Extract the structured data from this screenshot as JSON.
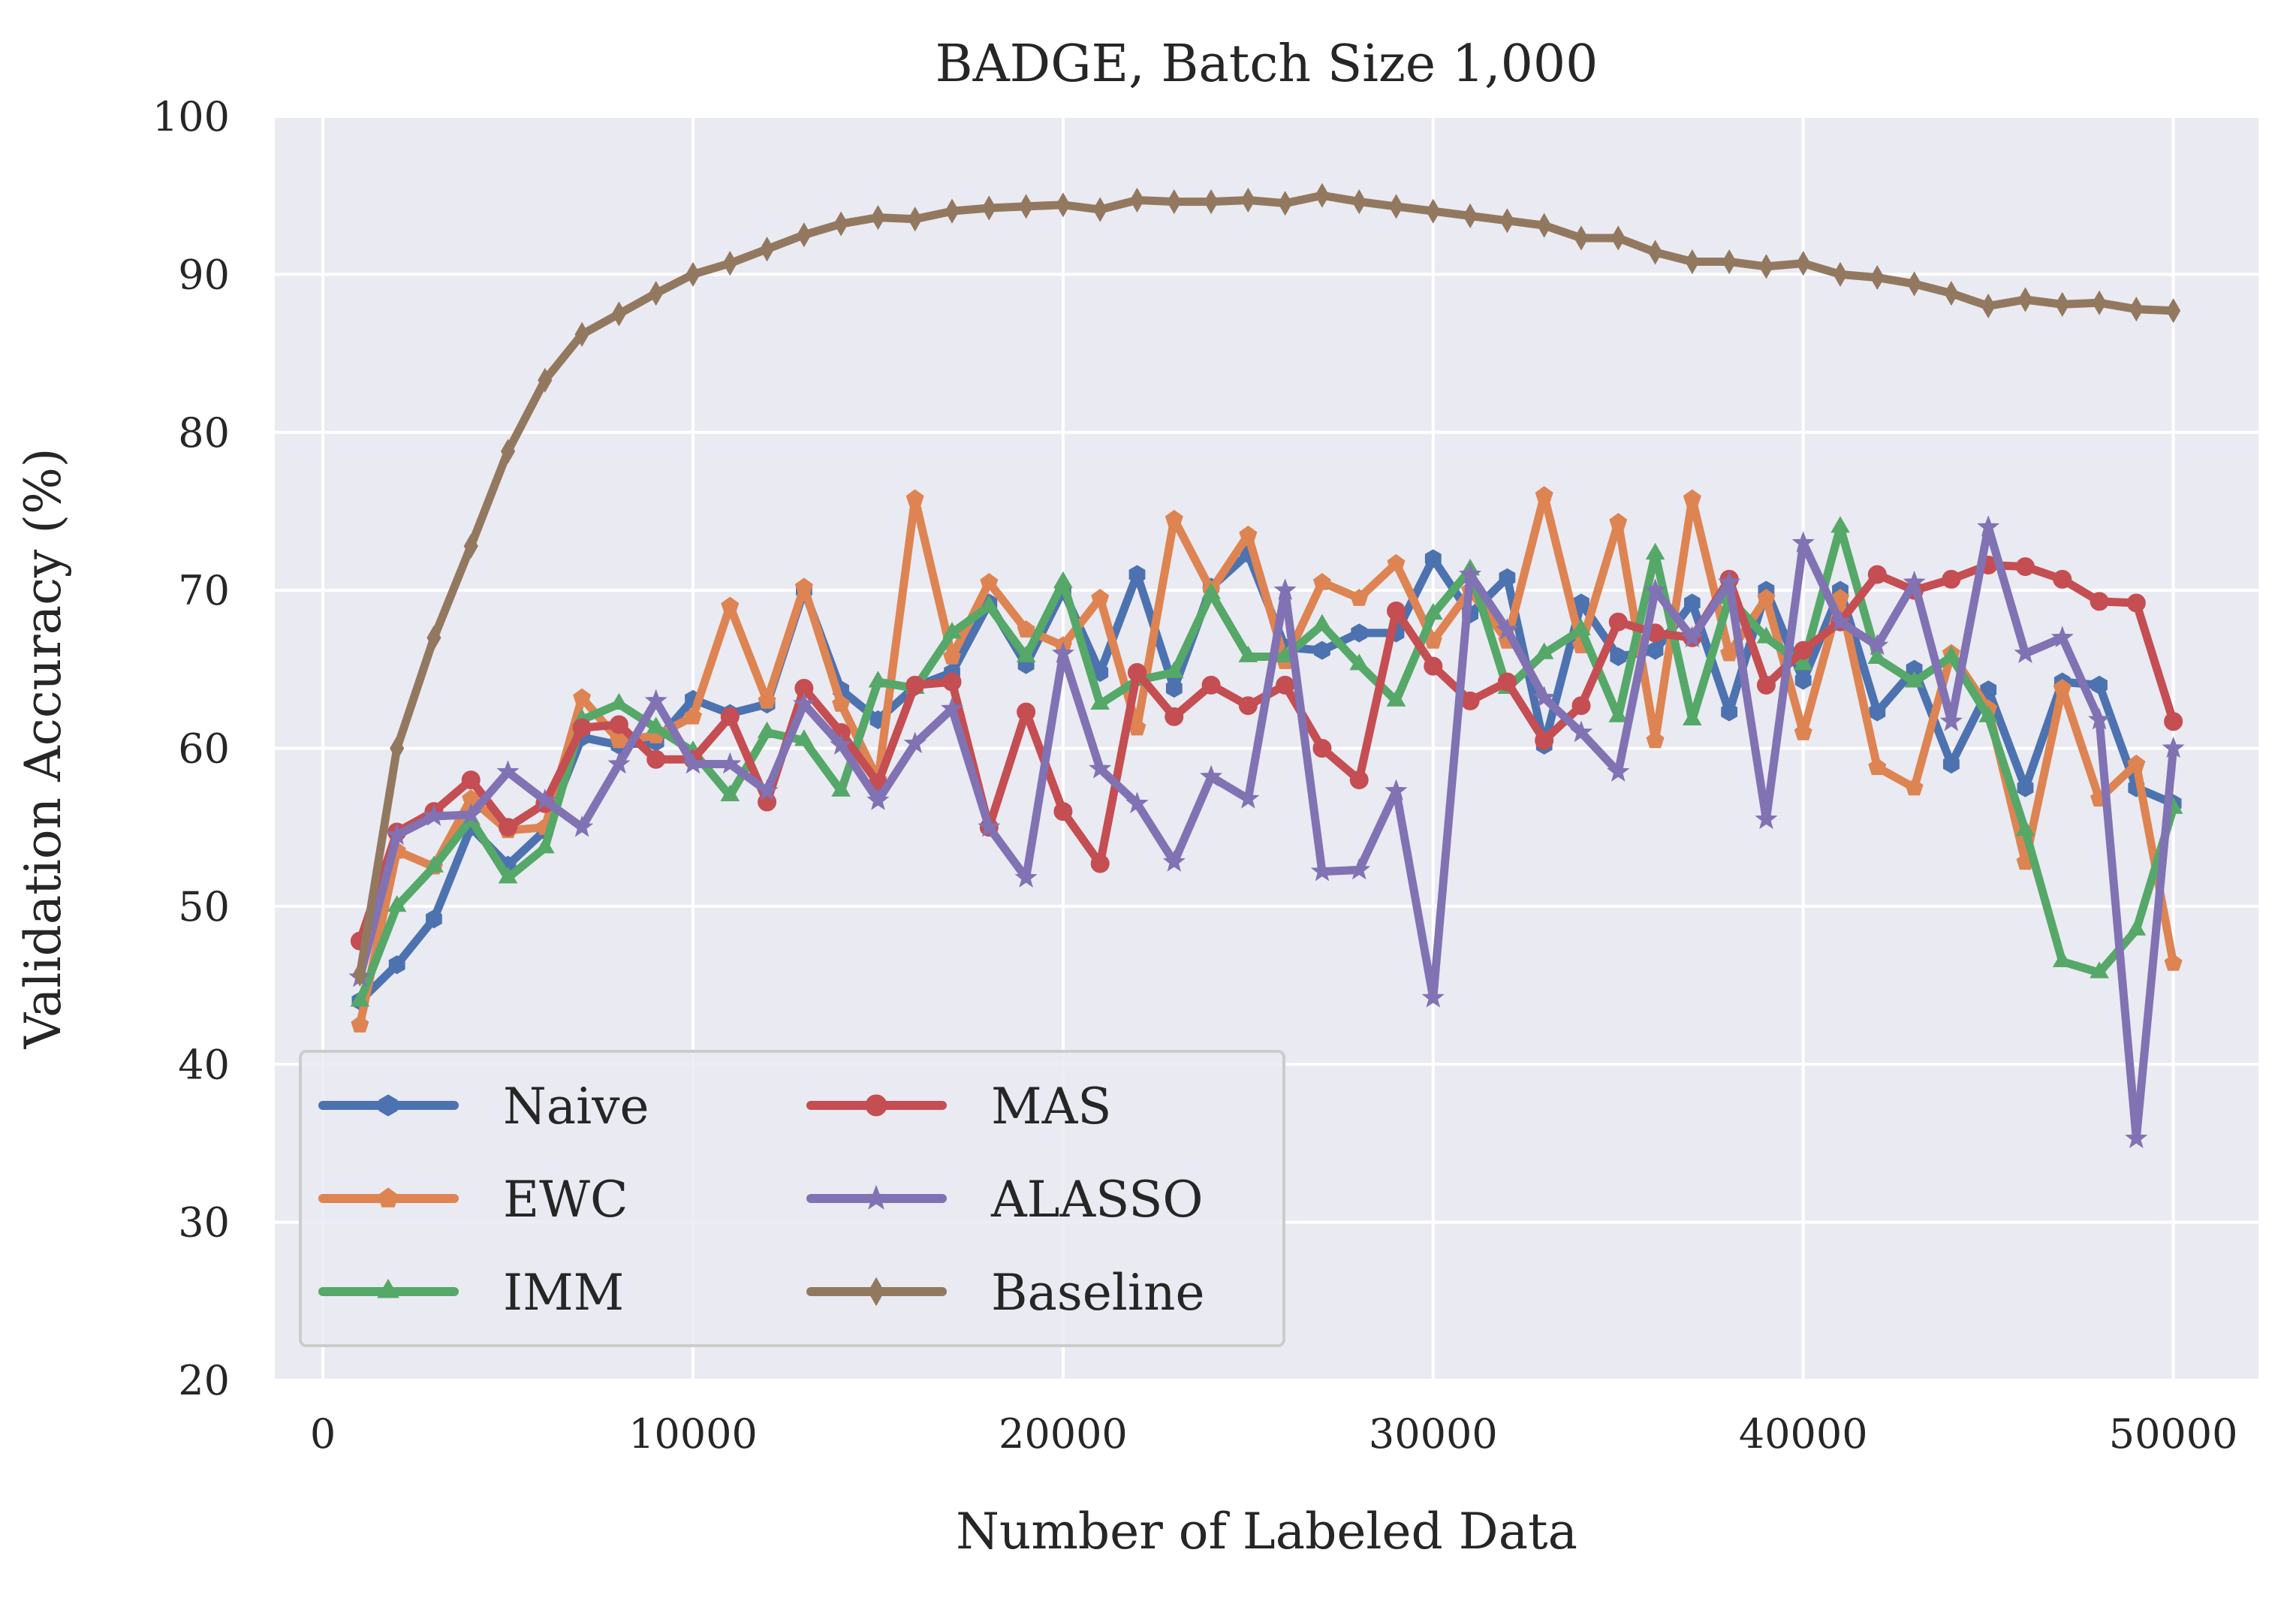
{
  "chart_data": {
    "type": "line",
    "title": "BADGE, Batch Size 1,000",
    "xlabel": "Number of Labeled Data",
    "ylabel": "Validation Accuracy (%)",
    "xlim": [
      -1300,
      52300
    ],
    "ylim": [
      20,
      100
    ],
    "xticks": [
      0,
      10000,
      20000,
      30000,
      40000,
      50000
    ],
    "yticks": [
      20,
      30,
      40,
      50,
      60,
      70,
      80,
      90,
      100
    ],
    "grid": true,
    "legend": {
      "placement": "lower-left",
      "columns": 2
    },
    "x": [
      1000,
      2000,
      3000,
      4000,
      5000,
      6000,
      7000,
      8000,
      9000,
      10000,
      11000,
      12000,
      13000,
      14000,
      15000,
      16000,
      17000,
      18000,
      19000,
      20000,
      21000,
      22000,
      23000,
      24000,
      25000,
      26000,
      27000,
      28000,
      29000,
      30000,
      31000,
      32000,
      33000,
      34000,
      35000,
      36000,
      37000,
      38000,
      39000,
      40000,
      41000,
      42000,
      43000,
      44000,
      45000,
      46000,
      47000,
      48000,
      49000,
      50000
    ],
    "series": [
      {
        "name": "Naive",
        "color": "#4c72b0",
        "marker": "hexagon",
        "values": [
          44,
          46.3,
          49.2,
          55,
          52.6,
          54.8,
          60.7,
          60.2,
          60.4,
          63.1,
          62.2,
          62.8,
          70,
          63.7,
          61.8,
          63.9,
          64.8,
          69.2,
          65.3,
          70,
          64.8,
          71,
          63.8,
          70.2,
          72.3,
          66.4,
          66.2,
          67.3,
          67.3,
          72,
          68.5,
          70.8,
          60.2,
          69.2,
          65.8,
          66.2,
          69.2,
          62.3,
          70,
          64.3,
          70,
          62.3,
          65,
          59,
          63.7,
          57.5,
          64.2,
          64,
          57.5,
          56.5
        ]
      },
      {
        "name": "EWC",
        "color": "#dd8452",
        "marker": "pentagon",
        "values": [
          42.5,
          53.5,
          52.5,
          56.8,
          54.8,
          55,
          63.2,
          60.5,
          60.8,
          62,
          69,
          63,
          70.2,
          62.8,
          58,
          75.8,
          65.8,
          70.5,
          67.5,
          66.5,
          69.5,
          61.3,
          74.5,
          70,
          73.5,
          65.5,
          70.5,
          69.5,
          71.7,
          66.8,
          70,
          66.8,
          76,
          66.5,
          74.3,
          60.5,
          75.8,
          66,
          69.5,
          61,
          69.5,
          58.8,
          57.5,
          66,
          62.5,
          52.8,
          63.8,
          56.8,
          59,
          46.4
        ]
      },
      {
        "name": "IMM",
        "color": "#55a868",
        "marker": "triangle",
        "values": [
          44,
          50,
          52.5,
          55.5,
          51.8,
          53.7,
          61.8,
          62.8,
          61.3,
          59.8,
          57,
          61,
          60.5,
          57.3,
          64.2,
          63.8,
          67.3,
          69,
          65.8,
          70.5,
          62.8,
          64.3,
          64.8,
          69.8,
          65.8,
          65.8,
          67.8,
          65.3,
          63,
          68.5,
          71.3,
          63.8,
          66,
          67.5,
          62,
          72.3,
          61.8,
          69.5,
          67,
          65.3,
          74,
          65.7,
          64.2,
          65.8,
          62,
          54.8,
          46.5,
          45.8,
          48.5,
          56.2
        ]
      },
      {
        "name": "MAS",
        "color": "#c44e52",
        "marker": "circle",
        "values": [
          47.8,
          54.7,
          56,
          58,
          55,
          56.5,
          61.3,
          61.5,
          59.3,
          59.3,
          62,
          56.6,
          63.8,
          61,
          57.8,
          64,
          64.2,
          55,
          62.3,
          56,
          52.7,
          64.8,
          62,
          64,
          62.7,
          64,
          60,
          58,
          68.7,
          65.2,
          63,
          64.2,
          60.5,
          62.7,
          68,
          67.3,
          67,
          70.7,
          64,
          66.2,
          68,
          71,
          70,
          70.7,
          71.6,
          71.5,
          70.7,
          69.3,
          69.2,
          61.7
        ]
      },
      {
        "name": "ALASSO",
        "color": "#8172b3",
        "marker": "star",
        "values": [
          45.5,
          54.5,
          55.7,
          55.8,
          58.5,
          56.7,
          55,
          59,
          63,
          59,
          59,
          57.3,
          62.8,
          60.2,
          56.7,
          60.3,
          62.5,
          55,
          51.8,
          66,
          58.7,
          56.5,
          52.8,
          58.2,
          56.8,
          70,
          52.2,
          52.3,
          57.3,
          44.2,
          71,
          67.5,
          63.2,
          61,
          58.5,
          70,
          67,
          70.5,
          55.5,
          73,
          68,
          66.5,
          70.5,
          61.7,
          74,
          66,
          67,
          61.8,
          35.3,
          60
        ]
      },
      {
        "name": "Baseline",
        "color": "#937860",
        "marker": "diamond",
        "values": [
          45.7,
          60,
          67,
          72.8,
          78.8,
          83.3,
          86.2,
          87.5,
          88.8,
          90,
          90.7,
          91.6,
          92.5,
          93.2,
          93.6,
          93.5,
          94,
          94.2,
          94.3,
          94.4,
          94.1,
          94.7,
          94.6,
          94.6,
          94.7,
          94.5,
          95,
          94.6,
          94.3,
          94,
          93.7,
          93.4,
          93.1,
          92.3,
          92.3,
          91.4,
          90.8,
          90.8,
          90.5,
          90.7,
          90,
          89.8,
          89.4,
          88.8,
          88,
          88.4,
          88.1,
          88.2,
          87.8,
          87.7
        ]
      }
    ]
  }
}
